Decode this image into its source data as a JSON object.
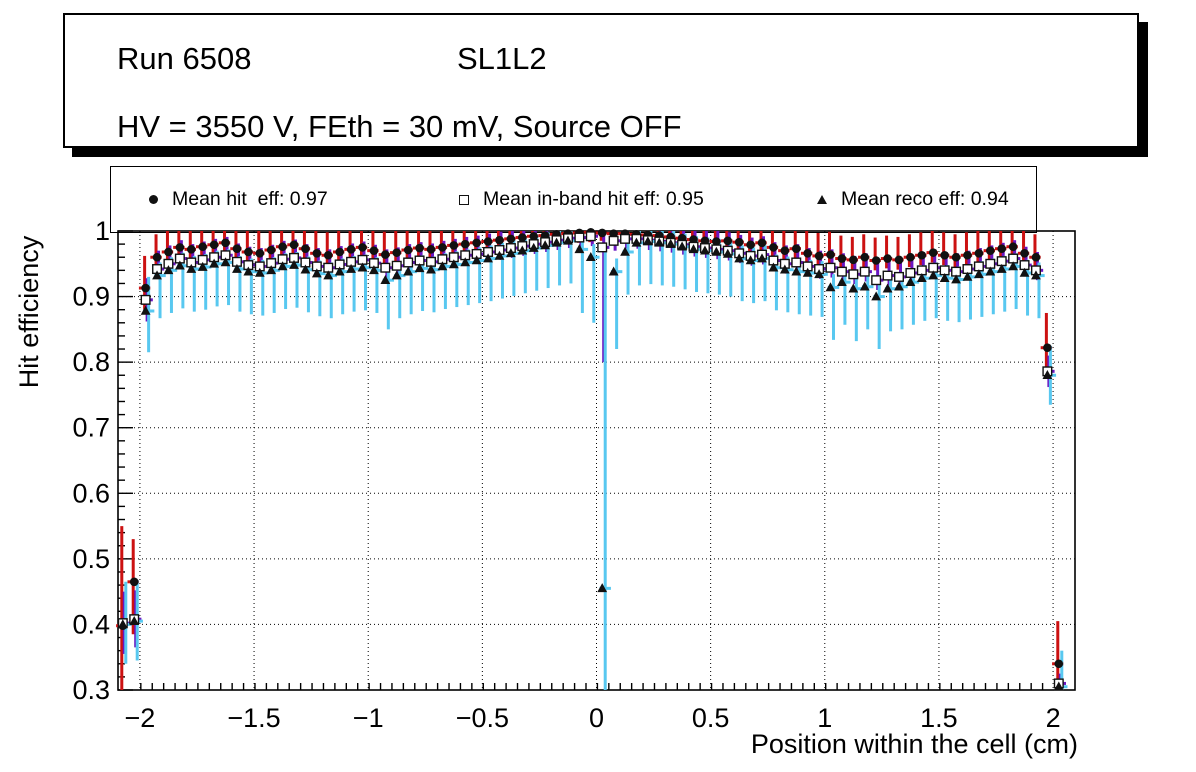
{
  "title_box": {
    "run_label": "Run 6508",
    "chamber_label": "SL1L2",
    "conditions_label": "HV = 3550 V, FEth = 30 mV, Source OFF"
  },
  "legend": {
    "entries": [
      {
        "marker": "filled-circle",
        "label": "Mean hit  eff: 0.97"
      },
      {
        "marker": "open-square",
        "label": "Mean in-band hit eff: 0.95"
      },
      {
        "marker": "filled-triangle",
        "label": "Mean reco eff: 0.94"
      }
    ]
  },
  "colors": {
    "hit_error": "#cc1111",
    "inband_error": "#6a16c2",
    "reco_error": "#58c8f0",
    "marker": "#111111",
    "frame": "#000000",
    "grid": "#000000"
  },
  "chart_data": {
    "type": "scatter",
    "title": "",
    "xlabel": "Position within the cell (cm)",
    "ylabel": "Hit efficiency",
    "xlim": [
      -2.096,
      2.096
    ],
    "ylim": [
      0.3,
      1.0
    ],
    "grid": "dotted",
    "legend_position": "top",
    "x_ticks": [
      -2,
      -1.5,
      -1,
      -0.5,
      0,
      0.5,
      1,
      1.5,
      2
    ],
    "x_tick_labels": [
      "−2",
      "−1.5",
      "−1",
      "−0.5",
      "0",
      "0.5",
      "1",
      "1.5",
      "2"
    ],
    "y_ticks": [
      0.3,
      0.4,
      0.5,
      0.6,
      0.7,
      0.8,
      0.9,
      1.0
    ],
    "y_tick_labels": [
      "0.3",
      "0.4",
      "0.5",
      "0.6",
      "0.7",
      "0.8",
      "0.9",
      "1"
    ],
    "x_minor_step": 0.05,
    "y_minor_step": 0.02,
    "bin_half_width": 0.025,
    "x": [
      -2.075,
      -2.025,
      -1.975,
      -1.925,
      -1.875,
      -1.825,
      -1.775,
      -1.725,
      -1.675,
      -1.625,
      -1.575,
      -1.525,
      -1.475,
      -1.425,
      -1.375,
      -1.325,
      -1.275,
      -1.225,
      -1.175,
      -1.125,
      -1.075,
      -1.025,
      -0.975,
      -0.925,
      -0.875,
      -0.825,
      -0.775,
      -0.725,
      -0.675,
      -0.625,
      -0.575,
      -0.525,
      -0.475,
      -0.425,
      -0.375,
      -0.325,
      -0.275,
      -0.225,
      -0.175,
      -0.125,
      -0.075,
      -0.025,
      0.025,
      0.075,
      0.125,
      0.175,
      0.225,
      0.275,
      0.325,
      0.375,
      0.425,
      0.475,
      0.525,
      0.575,
      0.625,
      0.675,
      0.725,
      0.775,
      0.825,
      0.875,
      0.925,
      0.975,
      1.025,
      1.075,
      1.125,
      1.175,
      1.225,
      1.275,
      1.325,
      1.375,
      1.425,
      1.475,
      1.525,
      1.575,
      1.625,
      1.675,
      1.725,
      1.775,
      1.825,
      1.875,
      1.925,
      1.975,
      2.025
    ],
    "series": [
      {
        "name": "Mean hit eff",
        "mean": 0.97,
        "marker": "filled-circle",
        "error_color": "#cc1111",
        "y": [
          0.398,
          0.465,
          0.913,
          0.96,
          0.968,
          0.975,
          0.972,
          0.976,
          0.979,
          0.982,
          0.973,
          0.968,
          0.966,
          0.971,
          0.976,
          0.979,
          0.973,
          0.966,
          0.963,
          0.968,
          0.972,
          0.975,
          0.97,
          0.964,
          0.967,
          0.971,
          0.974,
          0.972,
          0.975,
          0.978,
          0.98,
          0.982,
          0.984,
          0.986,
          0.988,
          0.99,
          0.992,
          0.993,
          0.995,
          0.996,
          0.997,
          0.998,
          0.997,
          0.996,
          0.996,
          0.995,
          0.994,
          0.993,
          0.991,
          0.989,
          0.987,
          0.985,
          0.984,
          0.985,
          0.983,
          0.979,
          0.982,
          0.975,
          0.97,
          0.973,
          0.966,
          0.962,
          0.964,
          0.958,
          0.956,
          0.96,
          0.955,
          0.958,
          0.956,
          0.96,
          0.963,
          0.967,
          0.963,
          0.96,
          0.963,
          0.966,
          0.97,
          0.973,
          0.976,
          0.966,
          0.96,
          0.822,
          0.34
        ],
        "lo": [
          0.3,
          0.385,
          0.878,
          0.945,
          0.953,
          0.96,
          0.957,
          0.961,
          0.964,
          0.967,
          0.958,
          0.953,
          0.951,
          0.956,
          0.961,
          0.964,
          0.958,
          0.951,
          0.948,
          0.953,
          0.957,
          0.96,
          0.955,
          0.949,
          0.952,
          0.956,
          0.959,
          0.957,
          0.96,
          0.963,
          0.965,
          0.967,
          0.969,
          0.971,
          0.973,
          0.975,
          0.977,
          0.978,
          0.98,
          0.981,
          0.982,
          0.983,
          0.985,
          0.981,
          0.981,
          0.98,
          0.979,
          0.978,
          0.976,
          0.974,
          0.972,
          0.97,
          0.969,
          0.97,
          0.968,
          0.964,
          0.967,
          0.96,
          0.955,
          0.958,
          0.951,
          0.947,
          0.949,
          0.943,
          0.941,
          0.945,
          0.94,
          0.943,
          0.941,
          0.945,
          0.948,
          0.952,
          0.948,
          0.945,
          0.948,
          0.951,
          0.955,
          0.958,
          0.961,
          0.951,
          0.945,
          0.78,
          0.3
        ],
        "hi": [
          0.55,
          0.53,
          0.962,
          0.995,
          1,
          1,
          1,
          1,
          1,
          1,
          1,
          1,
          1,
          1,
          1,
          1,
          1,
          1,
          0.998,
          1,
          1,
          1,
          1,
          0.999,
          1,
          1,
          1,
          1,
          1,
          1,
          1,
          1,
          1,
          1,
          1,
          1,
          1,
          1,
          1,
          1,
          1,
          1,
          1,
          1,
          1,
          1,
          1,
          1,
          1,
          1,
          1,
          1,
          1,
          1,
          1,
          1,
          1,
          1,
          1,
          1,
          1,
          0.997,
          0.999,
          0.993,
          0.991,
          0.995,
          0.99,
          0.993,
          0.991,
          0.995,
          0.998,
          1,
          0.998,
          0.995,
          0.998,
          1,
          1,
          1,
          1,
          1,
          0.995,
          0.875,
          0.405
        ]
      },
      {
        "name": "Mean in-band hit eff",
        "mean": 0.95,
        "marker": "open-square",
        "error_color": "#6a16c2",
        "y": [
          0.402,
          0.408,
          0.895,
          0.942,
          0.95,
          0.958,
          0.952,
          0.956,
          0.96,
          0.963,
          0.953,
          0.948,
          0.946,
          0.951,
          0.957,
          0.959,
          0.952,
          0.946,
          0.944,
          0.949,
          0.953,
          0.956,
          0.951,
          0.944,
          0.947,
          0.952,
          0.955,
          0.953,
          0.957,
          0.96,
          0.963,
          0.965,
          0.968,
          0.971,
          0.974,
          0.977,
          0.98,
          0.983,
          0.986,
          0.989,
          0.99,
          0.992,
          0.975,
          0.985,
          0.988,
          0.988,
          0.986,
          0.984,
          0.982,
          0.979,
          0.976,
          0.974,
          0.972,
          0.97,
          0.966,
          0.962,
          0.964,
          0.955,
          0.95,
          0.952,
          0.946,
          0.942,
          0.944,
          0.938,
          0.934,
          0.938,
          0.925,
          0.932,
          0.93,
          0.936,
          0.94,
          0.944,
          0.94,
          0.938,
          0.942,
          0.946,
          0.95,
          0.954,
          0.958,
          0.948,
          0.94,
          0.786,
          0.31
        ],
        "lo": [
          0.355,
          0.365,
          0.862,
          0.927,
          0.935,
          0.943,
          0.937,
          0.941,
          0.945,
          0.948,
          0.938,
          0.933,
          0.931,
          0.936,
          0.942,
          0.944,
          0.937,
          0.931,
          0.929,
          0.934,
          0.938,
          0.941,
          0.936,
          0.929,
          0.932,
          0.937,
          0.94,
          0.938,
          0.942,
          0.945,
          0.948,
          0.95,
          0.953,
          0.956,
          0.959,
          0.962,
          0.965,
          0.968,
          0.971,
          0.974,
          0.975,
          0.977,
          0.8,
          0.97,
          0.973,
          0.973,
          0.971,
          0.969,
          0.967,
          0.964,
          0.961,
          0.959,
          0.957,
          0.955,
          0.951,
          0.947,
          0.949,
          0.94,
          0.935,
          0.937,
          0.931,
          0.927,
          0.929,
          0.923,
          0.919,
          0.923,
          0.91,
          0.917,
          0.915,
          0.921,
          0.925,
          0.929,
          0.925,
          0.923,
          0.927,
          0.931,
          0.935,
          0.939,
          0.943,
          0.933,
          0.925,
          0.762,
          0.295
        ],
        "hi": [
          0.45,
          0.452,
          0.928,
          0.97,
          0.978,
          0.986,
          0.98,
          0.984,
          0.988,
          0.991,
          0.981,
          0.976,
          0.974,
          0.979,
          0.985,
          0.987,
          0.98,
          0.974,
          0.972,
          0.977,
          0.981,
          0.984,
          0.979,
          0.972,
          0.975,
          0.98,
          0.983,
          0.981,
          0.985,
          0.988,
          0.991,
          0.993,
          0.996,
          0.999,
          1,
          1,
          1,
          1,
          1,
          1,
          1,
          1,
          0.998,
          1,
          1,
          1,
          1,
          1,
          1,
          1,
          1,
          1,
          1,
          0.998,
          0.994,
          0.99,
          0.992,
          0.983,
          0.978,
          0.98,
          0.974,
          0.97,
          0.972,
          0.966,
          0.962,
          0.966,
          0.953,
          0.96,
          0.958,
          0.964,
          0.968,
          0.972,
          0.968,
          0.966,
          0.97,
          0.974,
          0.978,
          0.982,
          0.986,
          0.976,
          0.968,
          0.81,
          0.325
        ]
      },
      {
        "name": "Mean reco eff",
        "mean": 0.94,
        "marker": "filled-triangle",
        "error_color": "#58c8f0",
        "y": [
          0.4,
          0.405,
          0.878,
          0.932,
          0.94,
          0.947,
          0.942,
          0.945,
          0.95,
          0.952,
          0.942,
          0.938,
          0.936,
          0.94,
          0.946,
          0.948,
          0.941,
          0.935,
          0.932,
          0.938,
          0.942,
          0.944,
          0.94,
          0.925,
          0.932,
          0.938,
          0.943,
          0.941,
          0.946,
          0.949,
          0.952,
          0.955,
          0.958,
          0.962,
          0.966,
          0.97,
          0.974,
          0.978,
          0.982,
          0.985,
          0.972,
          0.96,
          0.455,
          0.938,
          0.968,
          0.982,
          0.984,
          0.982,
          0.98,
          0.976,
          0.972,
          0.97,
          0.968,
          0.965,
          0.958,
          0.955,
          0.958,
          0.944,
          0.941,
          0.938,
          0.936,
          0.934,
          0.914,
          0.922,
          0.912,
          0.915,
          0.9,
          0.912,
          0.915,
          0.922,
          0.928,
          0.932,
          0.928,
          0.926,
          0.93,
          0.934,
          0.938,
          0.942,
          0.946,
          0.936,
          0.932,
          0.78,
          0.305
        ],
        "lo": [
          0.34,
          0.345,
          0.815,
          0.867,
          0.875,
          0.882,
          0.877,
          0.88,
          0.885,
          0.887,
          0.877,
          0.873,
          0.871,
          0.875,
          0.881,
          0.883,
          0.876,
          0.87,
          0.867,
          0.873,
          0.877,
          0.879,
          0.875,
          0.85,
          0.867,
          0.873,
          0.878,
          0.876,
          0.881,
          0.884,
          0.887,
          0.89,
          0.893,
          0.897,
          0.901,
          0.905,
          0.909,
          0.913,
          0.917,
          0.92,
          0.875,
          0.86,
          0.3,
          0.82,
          0.903,
          0.917,
          0.919,
          0.917,
          0.915,
          0.911,
          0.907,
          0.905,
          0.903,
          0.9,
          0.893,
          0.89,
          0.893,
          0.879,
          0.876,
          0.873,
          0.871,
          0.869,
          0.834,
          0.857,
          0.832,
          0.85,
          0.82,
          0.847,
          0.85,
          0.857,
          0.863,
          0.867,
          0.863,
          0.861,
          0.865,
          0.869,
          0.873,
          0.877,
          0.881,
          0.871,
          0.867,
          0.735,
          0.3
        ],
        "hi": [
          0.465,
          0.468,
          0.93,
          0.952,
          0.96,
          0.967,
          0.962,
          0.965,
          0.97,
          0.972,
          0.962,
          0.958,
          0.956,
          0.96,
          0.966,
          0.968,
          0.961,
          0.955,
          0.952,
          0.958,
          0.962,
          0.964,
          0.96,
          0.945,
          0.952,
          0.958,
          0.963,
          0.961,
          0.966,
          0.969,
          0.972,
          0.975,
          0.978,
          0.982,
          0.986,
          0.99,
          0.994,
          0.998,
          1,
          1,
          0.992,
          0.98,
          0.97,
          0.958,
          0.988,
          1,
          1,
          1,
          1,
          0.996,
          0.992,
          0.99,
          0.988,
          0.985,
          0.978,
          0.975,
          0.978,
          0.964,
          0.961,
          0.958,
          0.956,
          0.954,
          0.934,
          0.942,
          0.932,
          0.935,
          0.92,
          0.932,
          0.935,
          0.942,
          0.948,
          0.952,
          0.948,
          0.946,
          0.95,
          0.954,
          0.958,
          0.962,
          0.966,
          0.956,
          0.952,
          0.825,
          0.36
        ]
      }
    ]
  }
}
